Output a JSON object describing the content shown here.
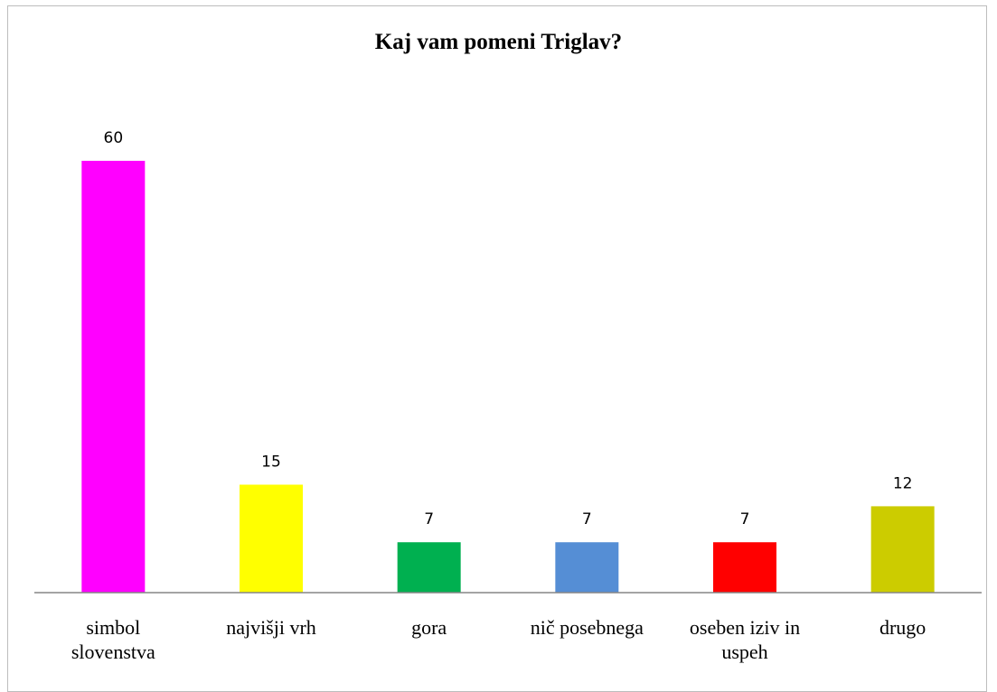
{
  "chart_data": {
    "type": "bar",
    "title": "Kaj vam pomeni Triglav?",
    "categories": [
      "simbol slovenstva",
      "najvišji vrh",
      "gora",
      "nič posebnega",
      "oseben iziv in uspeh",
      "drugo"
    ],
    "values": [
      60,
      15,
      7,
      7,
      7,
      12
    ],
    "colors": [
      "#ff00ff",
      "#ffff00",
      "#00b050",
      "#558ed5",
      "#ff0000",
      "#cccc00"
    ]
  }
}
